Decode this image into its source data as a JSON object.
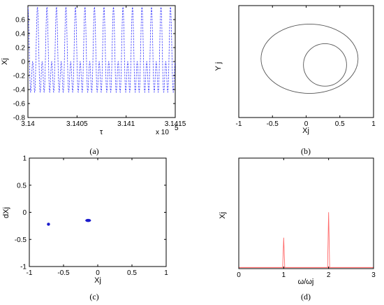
{
  "chart_data": [
    {
      "id": "a",
      "type": "line",
      "caption": "(a)",
      "xlabel": "τ",
      "ylabel": "Xj",
      "x_multiplier_label": "x 10",
      "x_multiplier_exp": "5",
      "xlim": [
        3.14,
        3.1415
      ],
      "ylim": [
        -0.8,
        0.8
      ],
      "xticks": [
        "3.14",
        "3.1405",
        "3.141",
        "3.1415"
      ],
      "xtick_values": [
        3.14,
        3.1405,
        3.141,
        3.1415
      ],
      "yticks": [
        "0.6",
        "0.4",
        "0.2",
        "0",
        "-0.2",
        "-0.4",
        "-0.6",
        "-0.8"
      ],
      "ytick_values": [
        0.6,
        0.4,
        0.2,
        0,
        -0.2,
        -0.4,
        -0.6,
        -0.8
      ],
      "series": [
        {
          "style": "dashed",
          "color": "#3a3aff",
          "amplitude": 0.78,
          "fundamental_cycles": 15.5,
          "harmonic2_ratio": 0.5,
          "harmonic1_ratio": 0.28
        }
      ]
    },
    {
      "id": "b",
      "type": "line",
      "caption": "(b)",
      "xlabel": "Xj",
      "ylabel": "Y j",
      "xlim": [
        -1,
        1
      ],
      "ylim": [
        -1,
        1
      ],
      "xticks": [
        "-1",
        "-0.5",
        "0",
        "0.5",
        "1"
      ],
      "xtick_values": [
        -1,
        -0.5,
        0,
        0.5,
        1
      ],
      "yticks": [],
      "series": [
        {
          "color": "#555555",
          "outer_loop": {
            "cx": 0.05,
            "cy": 0.05,
            "rx": 0.72,
            "ry": 0.62
          },
          "inner_loop": {
            "cx": 0.28,
            "cy": -0.06,
            "rx": 0.32,
            "ry": 0.38
          }
        }
      ]
    },
    {
      "id": "c",
      "type": "scatter",
      "caption": "(c)",
      "xlabel": "Xj",
      "ylabel": "dXj",
      "xlim": [
        -1,
        1
      ],
      "ylim": [
        -1,
        1
      ],
      "xticks": [
        "-1",
        "-0.5",
        "0",
        "0.5",
        "1"
      ],
      "xtick_values": [
        -1,
        -0.5,
        0,
        0.5,
        1
      ],
      "yticks": [
        "1",
        "0.5",
        "0",
        "-0.5",
        "-1"
      ],
      "ytick_values": [
        1,
        0.5,
        0,
        -0.5,
        -1
      ],
      "series": [
        {
          "color": "#1a1acc",
          "points": [
            [
              -0.72,
              -0.22
            ],
            [
              -0.14,
              -0.15
            ]
          ],
          "cluster_spread": [
            [
              0.015,
              0.015
            ],
            [
              0.04,
              0.012
            ]
          ]
        }
      ]
    },
    {
      "id": "d",
      "type": "line",
      "caption": "(d)",
      "xlabel": "ω/ωj",
      "ylabel": "Xj",
      "xlim": [
        0,
        3
      ],
      "ylim": [
        0,
        1
      ],
      "xticks": [
        "0",
        "1",
        "2",
        "3"
      ],
      "xtick_values": [
        0,
        1,
        2,
        3
      ],
      "yticks": [],
      "series": [
        {
          "color": "#ff6a6a",
          "peaks": [
            [
              1,
              0.28
            ],
            [
              2,
              0.51
            ]
          ],
          "baseline": 0.01
        }
      ]
    }
  ]
}
